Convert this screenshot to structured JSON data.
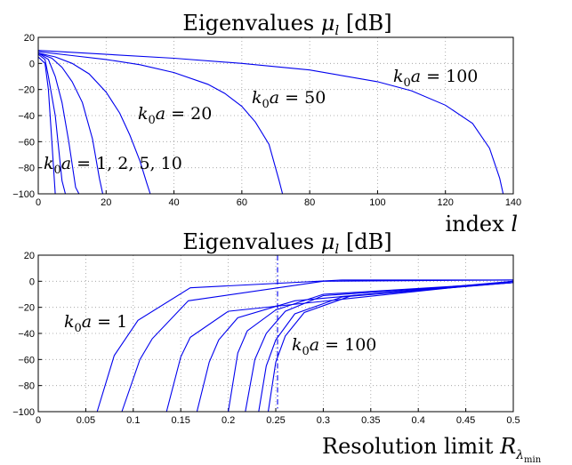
{
  "chart_data": [
    {
      "type": "line",
      "title": "Eigenvalues μ_l [dB]",
      "xlabel": "index l",
      "ylabel": "",
      "xlim": [
        0,
        140
      ],
      "ylim": [
        -100,
        20
      ],
      "xticks": [
        "0",
        "20",
        "40",
        "60",
        "80",
        "100",
        "120",
        "140"
      ],
      "yticks": [
        "20",
        "0",
        "−20",
        "−40",
        "−60",
        "−80",
        "−100"
      ],
      "grid": true,
      "annotations": [
        {
          "text": "k0a = 100",
          "x": 103,
          "y": -5
        },
        {
          "text": "k0a = 50",
          "x": 62,
          "y": -19
        },
        {
          "text": "k0a = 20",
          "x": 28,
          "y": -35
        },
        {
          "text": "k0a = 1, 2, 5, 10",
          "x": 2,
          "y": -77
        }
      ],
      "series": [
        {
          "x": [
            0,
            2,
            3,
            4,
            5,
            6
          ],
          "values": [
            5,
            0,
            -20,
            -60,
            -100,
            -100
          ]
        },
        {
          "x": [
            0,
            2,
            3,
            5,
            7,
            8
          ],
          "values": [
            7,
            3,
            -10,
            -40,
            -90,
            -100
          ]
        },
        {
          "x": [
            0,
            3,
            5,
            7,
            9,
            11,
            12
          ],
          "values": [
            8,
            3,
            -10,
            -30,
            -60,
            -95,
            -100
          ]
        },
        {
          "x": [
            0,
            4,
            7,
            10,
            13,
            16,
            18,
            19
          ],
          "values": [
            8,
            4,
            -3,
            -14,
            -30,
            -58,
            -88,
            -100
          ]
        },
        {
          "x": [
            0,
            5,
            10,
            15,
            20,
            24,
            27,
            30,
            32,
            33
          ],
          "values": [
            8,
            5,
            0,
            -8,
            -22,
            -38,
            -55,
            -75,
            -92,
            -100
          ]
        },
        {
          "x": [
            0,
            10,
            20,
            30,
            40,
            50,
            55,
            60,
            64,
            68,
            71,
            72
          ],
          "values": [
            9,
            6,
            3,
            -1,
            -7,
            -16,
            -23,
            -33,
            -45,
            -62,
            -90,
            -100
          ]
        },
        {
          "x": [
            0,
            20,
            40,
            60,
            80,
            100,
            110,
            120,
            128,
            133,
            136,
            137
          ],
          "values": [
            10,
            7,
            4,
            0,
            -5,
            -14,
            -21,
            -32,
            -46,
            -65,
            -88,
            -100
          ]
        }
      ]
    },
    {
      "type": "line",
      "title": "Eigenvalues μ_l [dB]",
      "xlabel": "Resolution limit R_λmin",
      "ylabel": "",
      "xlim": [
        0,
        0.5
      ],
      "ylim": [
        -100,
        20
      ],
      "xticks": [
        "0",
        "0.05",
        "0.1",
        "0.15",
        "0.2",
        "0.25",
        "0.3",
        "0.35",
        "0.4",
        "0.45",
        "0.5"
      ],
      "yticks": [
        "20",
        "0",
        "−20",
        "−40",
        "−60",
        "−80",
        "−100"
      ],
      "grid": true,
      "vline": 0.25,
      "annotations": [
        {
          "text": "k0a = 1",
          "x": 0.025,
          "y": -32
        },
        {
          "text": "k0a = 100",
          "x": 0.263,
          "y": -45
        }
      ],
      "series": [
        {
          "x": [
            0.062,
            0.08,
            0.105,
            0.16,
            0.32,
            0.5
          ],
          "values": [
            -100,
            -57,
            -30,
            -5,
            1,
            1
          ]
        },
        {
          "x": [
            0.088,
            0.107,
            0.12,
            0.158,
            0.3,
            0.5
          ],
          "values": [
            -100,
            -60,
            -44,
            -15,
            0,
            1
          ]
        },
        {
          "x": [
            0.135,
            0.15,
            0.16,
            0.2,
            0.5
          ],
          "values": [
            -100,
            -58,
            -43,
            -23,
            0
          ]
        },
        {
          "x": [
            0.167,
            0.18,
            0.19,
            0.21,
            0.27,
            0.5
          ],
          "values": [
            -100,
            -62,
            -45,
            -28,
            -15,
            0
          ]
        },
        {
          "x": [
            0.2,
            0.21,
            0.22,
            0.25,
            0.3,
            0.5
          ],
          "values": [
            -100,
            -55,
            -38,
            -22,
            -10,
            -1
          ]
        },
        {
          "x": [
            0.218,
            0.228,
            0.24,
            0.26,
            0.3,
            0.5
          ],
          "values": [
            -100,
            -60,
            -40,
            -23,
            -11,
            -1
          ]
        },
        {
          "x": [
            0.232,
            0.24,
            0.25,
            0.27,
            0.32,
            0.5
          ],
          "values": [
            -100,
            -65,
            -45,
            -25,
            -12,
            -1
          ]
        },
        {
          "x": [
            0.242,
            0.25,
            0.26,
            0.28,
            0.33,
            0.5
          ],
          "values": [
            -100,
            -62,
            -42,
            -24,
            -11,
            -1
          ]
        }
      ]
    }
  ]
}
